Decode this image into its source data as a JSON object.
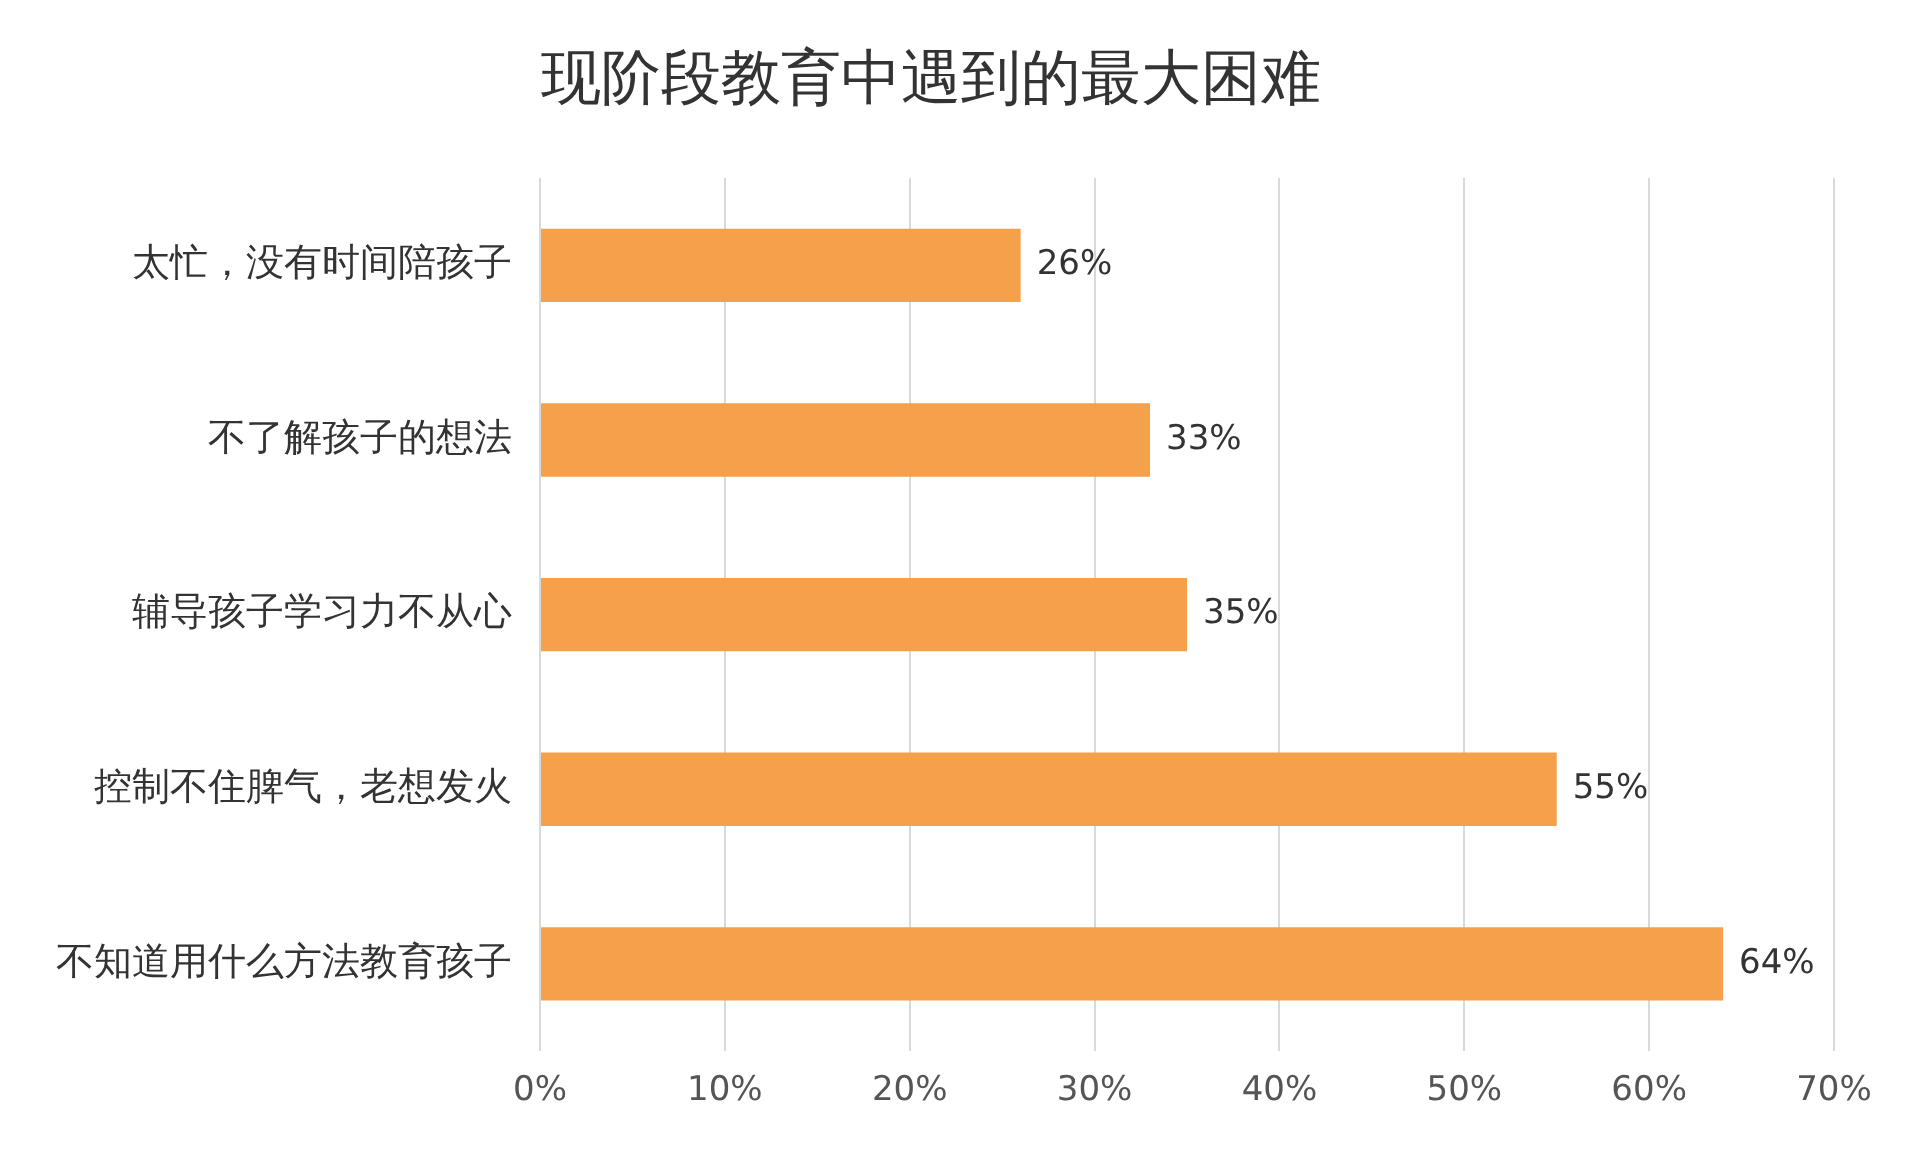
{
  "chart_data": {
    "type": "bar",
    "orientation": "horizontal",
    "title": "现阶段教育中遇到的最大困难",
    "categories": [
      "太忙，没有时间陪孩子",
      "不了解孩子的想法",
      "辅导孩子学习力不从心",
      "控制不住脾气，老想发火",
      "不知道用什么方法教育孩子"
    ],
    "values": [
      26,
      33,
      35,
      55,
      64
    ],
    "value_labels": [
      "26%",
      "33%",
      "35%",
      "55%",
      "64%"
    ],
    "color": "#f5a04b",
    "xlim": [
      0,
      70
    ],
    "xticks": [
      {
        "value": 0,
        "label": "0%"
      },
      {
        "value": 10,
        "label": "10%"
      },
      {
        "value": 20,
        "label": "20%"
      },
      {
        "value": 30,
        "label": "30%"
      },
      {
        "value": 40,
        "label": "40%"
      },
      {
        "value": 50,
        "label": "50%"
      },
      {
        "value": 60,
        "label": "60%"
      },
      {
        "value": 70,
        "label": "70%"
      }
    ],
    "grid": "x",
    "legend": false
  }
}
